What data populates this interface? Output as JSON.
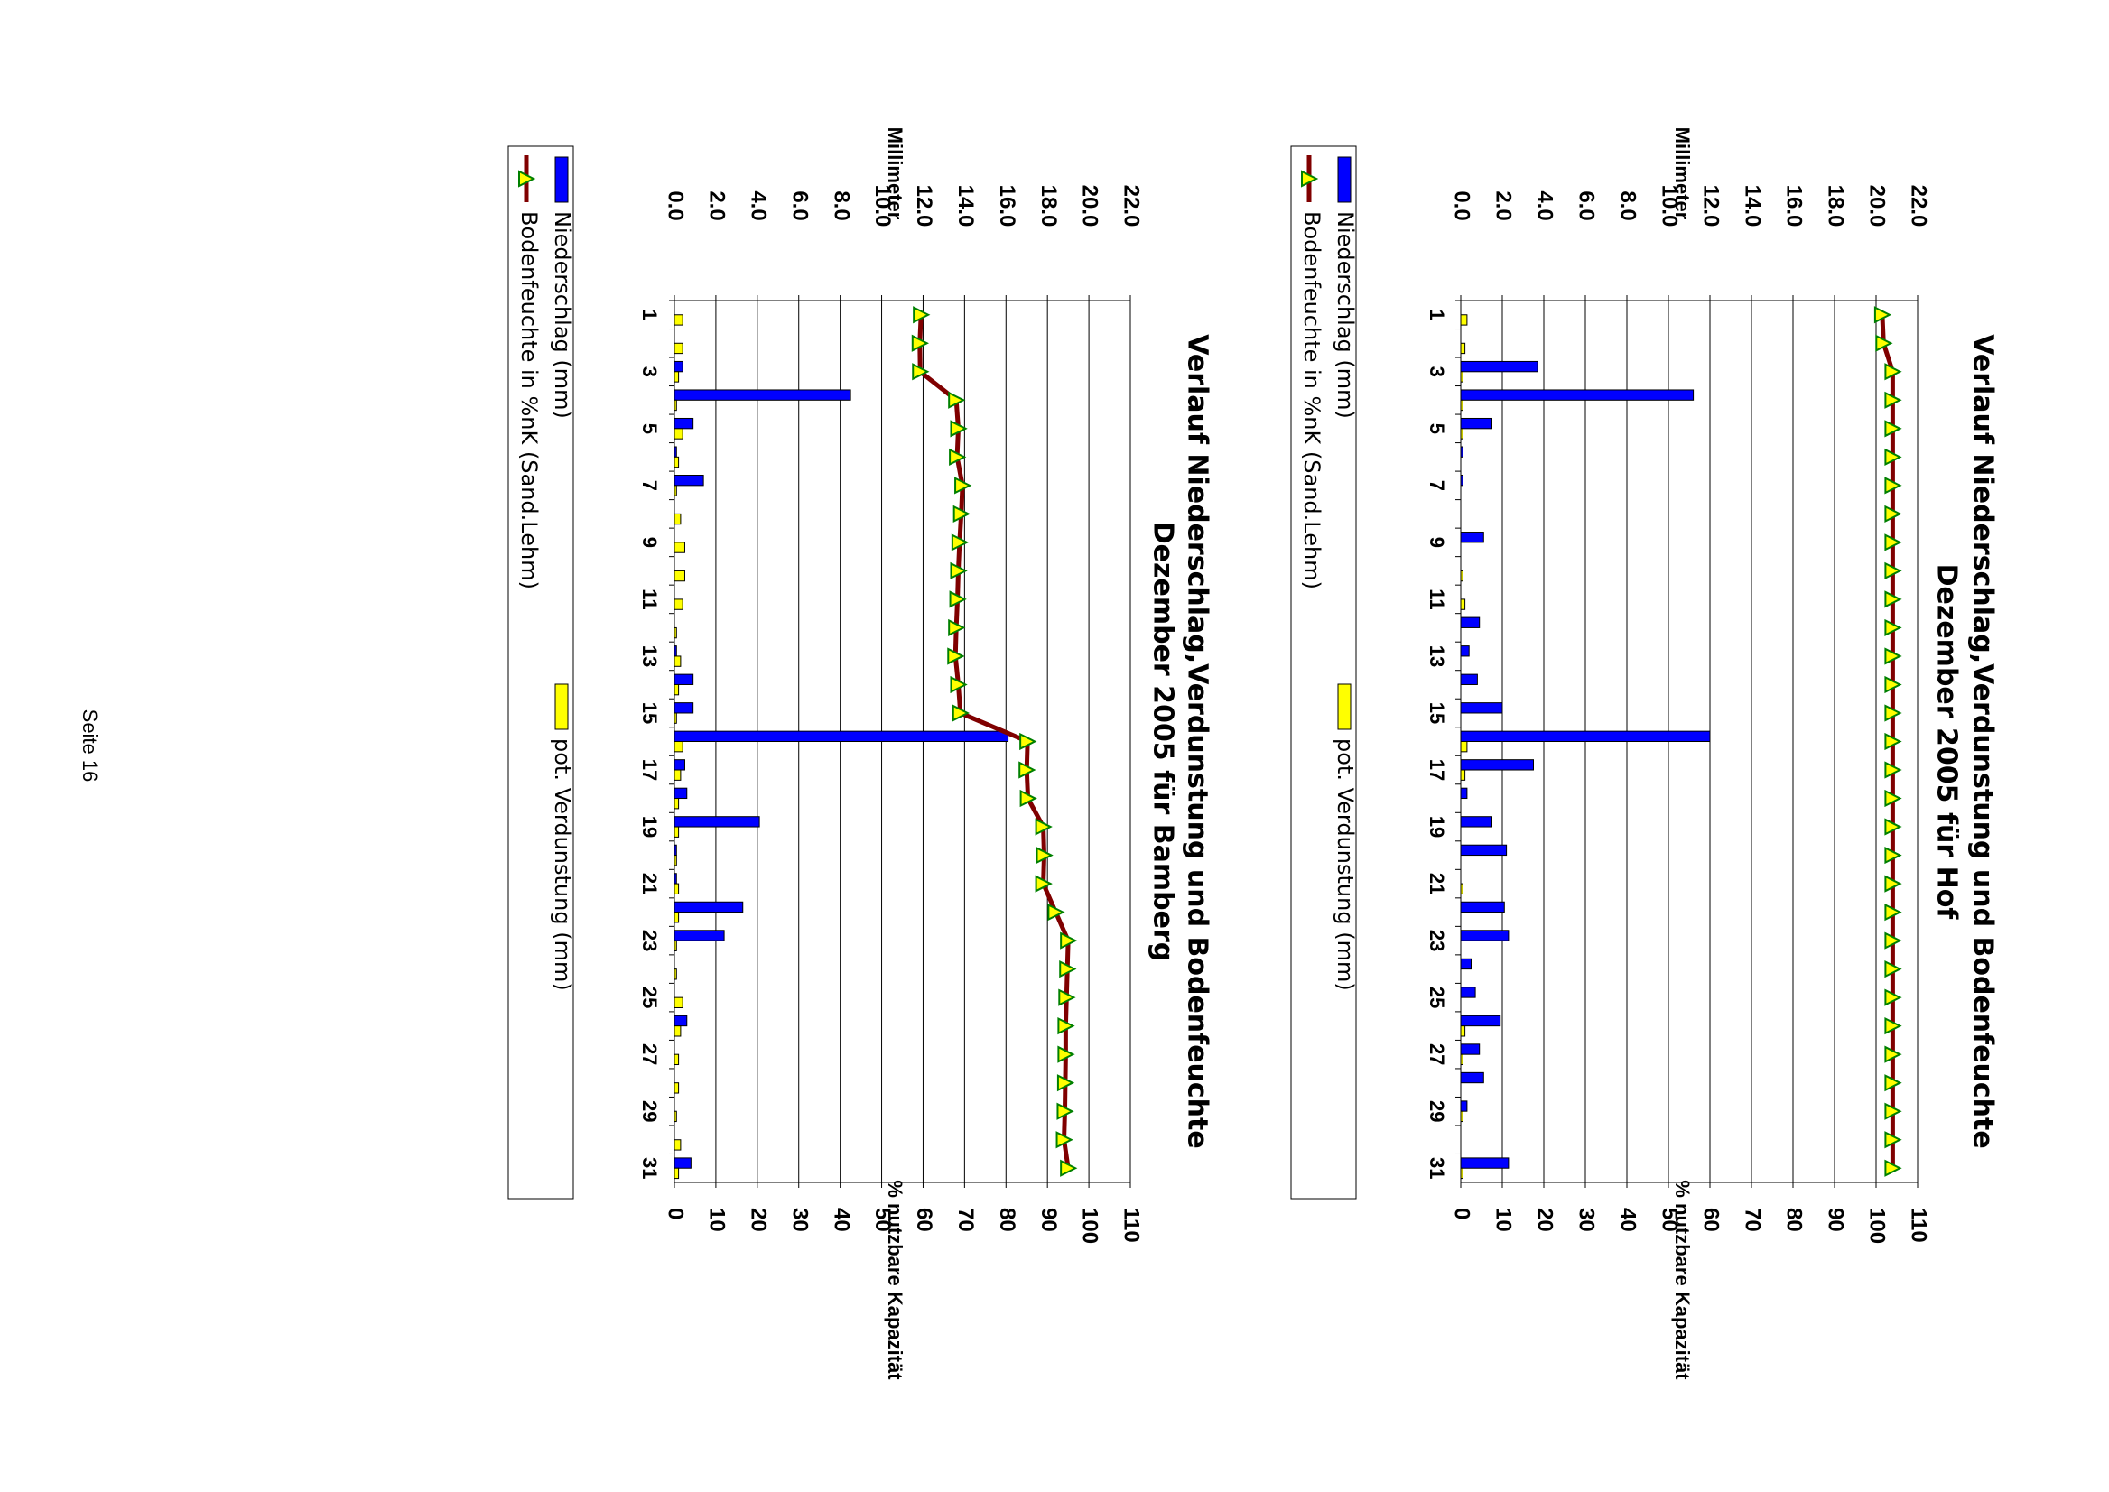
{
  "page": {
    "footer": "Seite 16"
  },
  "colors": {
    "precip": "#0000ff",
    "evap": "#ffff00",
    "soil_line": "#800000",
    "marker": "#ffff00",
    "marker_edge": "#008000",
    "grid": "#000000"
  },
  "chart_data": [
    {
      "type": "bar",
      "title": "Verlauf Niederschlag,Verdunstung und Bodenfeuchte",
      "subtitle": "Dezember 2005 für Hof",
      "xlabel": "",
      "ylabel_left": "Millimeter",
      "ylabel_right": "% nutzbare Kapazität",
      "ylim_left": [
        0,
        22
      ],
      "ylim_right": [
        0,
        110
      ],
      "yticks_left": [
        "0.0",
        "2.0",
        "4.0",
        "6.0",
        "8.0",
        "10.0",
        "12.0",
        "14.0",
        "16.0",
        "18.0",
        "20.0",
        "22.0"
      ],
      "yticks_right": [
        "0",
        "10",
        "20",
        "30",
        "40",
        "50",
        "60",
        "70",
        "80",
        "90",
        "100",
        "110"
      ],
      "x_ticks": [
        "1",
        "3",
        "5",
        "7",
        "9",
        "11",
        "13",
        "15",
        "17",
        "19",
        "21",
        "23",
        "25",
        "27",
        "29",
        "31"
      ],
      "categories": [
        1,
        2,
        3,
        4,
        5,
        6,
        7,
        8,
        9,
        10,
        11,
        12,
        13,
        14,
        15,
        16,
        17,
        18,
        19,
        20,
        21,
        22,
        23,
        24,
        25,
        26,
        27,
        28,
        29,
        30,
        31
      ],
      "grid": true,
      "legend_position": "bottom",
      "series": [
        {
          "name": "Niederschlag (mm)",
          "kind": "bar",
          "axis": "left",
          "values": [
            0,
            0,
            3.7,
            11.2,
            1.5,
            0.1,
            0.1,
            0,
            1.1,
            0,
            0,
            0.9,
            0.4,
            0.8,
            2.0,
            12.0,
            3.5,
            0.3,
            1.5,
            2.2,
            0,
            2.1,
            2.3,
            0.5,
            0.7,
            1.9,
            0.9,
            1.1,
            0.3,
            0,
            2.3
          ]
        },
        {
          "name": "pot. Verdunstung (mm)",
          "kind": "bar",
          "axis": "left",
          "values": [
            0.3,
            0.2,
            0.1,
            0.1,
            0.1,
            0,
            0,
            0,
            0,
            0.1,
            0.2,
            0,
            0,
            0,
            0,
            0.3,
            0.2,
            0,
            0,
            0,
            0.1,
            0,
            0,
            0,
            0,
            0.2,
            0.1,
            0,
            0.1,
            0,
            0.1
          ]
        },
        {
          "name": "Bodenfeuchte in %nK (Sand.Lehm)",
          "kind": "line",
          "axis": "right",
          "values": [
            101.5,
            101.8,
            104.0,
            104.0,
            104.0,
            104.0,
            104.0,
            104.0,
            104.0,
            104.0,
            104.0,
            104.0,
            104.0,
            104.0,
            104.0,
            104.0,
            104.0,
            104.0,
            104.0,
            104.0,
            104.0,
            104.0,
            104.0,
            104.0,
            104.0,
            104.0,
            104.0,
            104.0,
            104.0,
            104.0,
            104.0
          ]
        }
      ]
    },
    {
      "type": "bar",
      "title": "Verlauf Niederschlag,Verdunstung und Bodenfeuchte",
      "subtitle": "Dezember 2005 für Bamberg",
      "xlabel": "",
      "ylabel_left": "Millimeter",
      "ylabel_right": "% nutzbare Kapazität",
      "ylim_left": [
        0,
        22
      ],
      "ylim_right": [
        0,
        110
      ],
      "yticks_left": [
        "0.0",
        "2.0",
        "4.0",
        "6.0",
        "8.0",
        "10.0",
        "12.0",
        "14.0",
        "16.0",
        "18.0",
        "20.0",
        "22.0"
      ],
      "yticks_right": [
        "0",
        "10",
        "20",
        "30",
        "40",
        "50",
        "60",
        "70",
        "80",
        "90",
        "100",
        "110"
      ],
      "x_ticks": [
        "1",
        "3",
        "5",
        "7",
        "9",
        "11",
        "13",
        "15",
        "17",
        "19",
        "21",
        "23",
        "25",
        "27",
        "29",
        "31"
      ],
      "categories": [
        1,
        2,
        3,
        4,
        5,
        6,
        7,
        8,
        9,
        10,
        11,
        12,
        13,
        14,
        15,
        16,
        17,
        18,
        19,
        20,
        21,
        22,
        23,
        24,
        25,
        26,
        27,
        28,
        29,
        30,
        31
      ],
      "grid": true,
      "legend_position": "bottom",
      "series": [
        {
          "name": "Niederschlag (mm)",
          "kind": "bar",
          "axis": "left",
          "values": [
            0,
            0,
            0.4,
            8.5,
            0.9,
            0.1,
            1.4,
            0,
            0,
            0,
            0,
            0,
            0.1,
            0.9,
            0.9,
            16.1,
            0.5,
            0.6,
            4.1,
            0.1,
            0.1,
            3.3,
            2.4,
            0,
            0,
            0.6,
            0,
            0,
            0,
            0,
            0.8
          ]
        },
        {
          "name": "pot. Verdunstung (mm)",
          "kind": "bar",
          "axis": "left",
          "values": [
            0.4,
            0.4,
            0.2,
            0.1,
            0.4,
            0.2,
            0.1,
            0.3,
            0.5,
            0.5,
            0.4,
            0.1,
            0.3,
            0.2,
            0.1,
            0.4,
            0.3,
            0.2,
            0.2,
            0.1,
            0.2,
            0.2,
            0.1,
            0.1,
            0.4,
            0.3,
            0.2,
            0.2,
            0.1,
            0.3,
            0.2
          ]
        },
        {
          "name": "Bodenfeuchte in %nK (Sand.Lehm)",
          "kind": "line",
          "axis": "right",
          "values": [
            59.5,
            59.2,
            59.3,
            68.0,
            68.5,
            68.2,
            69.5,
            69.2,
            68.8,
            68.5,
            68.3,
            68.0,
            67.8,
            68.5,
            69.0,
            85.2,
            85.0,
            85.3,
            89.0,
            89.2,
            89.0,
            92.0,
            95.0,
            94.8,
            94.6,
            94.4,
            94.4,
            94.3,
            94.2,
            94.0,
            95.0
          ]
        }
      ]
    }
  ]
}
